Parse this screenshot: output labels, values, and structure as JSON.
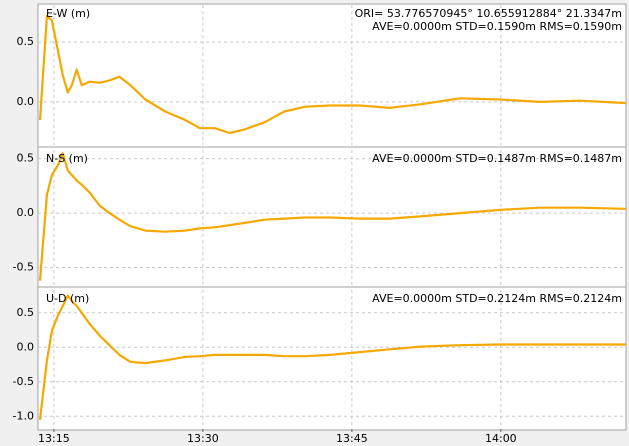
{
  "chart_data": [
    {
      "type": "line",
      "title": "E-W (m)",
      "annotations": [
        "ORI= 53.776570945°   10.655912884° 21.3347m",
        "AVE=0.0000m STD=0.1590m RMS=0.1590m"
      ],
      "x": [
        793.6,
        794.3,
        794.8,
        795.4,
        795.9,
        796.4,
        796.8,
        797.3,
        797.8,
        798.6,
        799.6,
        800.6,
        801.6,
        802.7,
        804.2,
        806.2,
        808.2,
        809.7,
        811.2,
        812.7,
        814.2,
        816.2,
        818.2,
        820.3,
        822.8,
        825.8,
        828.8,
        831.9,
        835.9,
        839.9,
        843.9,
        848.0,
        852.6
      ],
      "series": [
        {
          "name": "E-W",
          "color": "#f5a900",
          "values": [
            -0.15,
            0.72,
            0.68,
            0.43,
            0.22,
            0.08,
            0.14,
            0.27,
            0.14,
            0.17,
            0.16,
            0.18,
            0.21,
            0.14,
            0.02,
            -0.08,
            -0.15,
            -0.22,
            -0.22,
            -0.26,
            -0.23,
            -0.17,
            -0.08,
            -0.04,
            -0.03,
            -0.03,
            -0.05,
            -0.02,
            0.03,
            0.02,
            0.0,
            0.01,
            -0.01
          ]
        }
      ],
      "xlim": [
        793.4,
        852.6
      ],
      "ylim": [
        -0.36,
        0.81
      ],
      "yticks": [
        {
          "value": 0,
          "label": "0.0"
        },
        {
          "value": 0.5,
          "label": "0.5"
        }
      ],
      "grid": true
    },
    {
      "type": "line",
      "title": "N-S (m)",
      "annotations": [
        "AVE=0.0000m STD=0.1487m RMS=0.1487m"
      ],
      "x": [
        793.6,
        794.3,
        794.8,
        795.4,
        795.9,
        796.4,
        796.8,
        797.3,
        797.8,
        798.6,
        799.6,
        800.6,
        801.6,
        802.7,
        804.2,
        806.2,
        808.2,
        809.7,
        811.2,
        812.7,
        814.2,
        816.2,
        818.2,
        820.3,
        822.8,
        825.8,
        828.8,
        831.9,
        835.9,
        839.9,
        843.9,
        848.0,
        852.6
      ],
      "series": [
        {
          "name": "N-S",
          "color": "#f5a900",
          "values": [
            -0.62,
            0.17,
            0.35,
            0.44,
            0.55,
            0.39,
            0.35,
            0.3,
            0.26,
            0.19,
            0.07,
            0.0,
            -0.06,
            -0.12,
            -0.16,
            -0.17,
            -0.16,
            -0.14,
            -0.13,
            -0.11,
            -0.09,
            -0.06,
            -0.05,
            -0.04,
            -0.04,
            -0.05,
            -0.05,
            -0.03,
            0.0,
            0.03,
            0.05,
            0.05,
            0.04
          ]
        }
      ],
      "xlim": [
        793.4,
        852.6
      ],
      "ylim": [
        -0.66,
        0.58
      ],
      "yticks": [
        {
          "value": -0.5,
          "label": "-0.5"
        },
        {
          "value": 0,
          "label": "0.0"
        },
        {
          "value": 0.5,
          "label": "0.5"
        }
      ],
      "grid": true
    },
    {
      "type": "line",
      "title": "U-D (m)",
      "annotations": [
        "AVE=0.0000m STD=0.2124m RMS=0.2124m"
      ],
      "x": [
        793.6,
        794.3,
        794.8,
        795.4,
        795.9,
        796.4,
        796.8,
        797.3,
        797.8,
        798.6,
        799.6,
        800.6,
        801.6,
        802.7,
        804.2,
        806.2,
        808.2,
        809.7,
        811.2,
        812.7,
        814.2,
        816.2,
        818.2,
        820.3,
        822.8,
        825.8,
        828.8,
        831.9,
        835.9,
        839.9,
        843.9,
        848.0,
        852.6
      ],
      "series": [
        {
          "name": "U-D",
          "color": "#f5a900",
          "values": [
            -1.05,
            -0.19,
            0.24,
            0.46,
            0.6,
            0.75,
            0.67,
            0.6,
            0.5,
            0.34,
            0.17,
            0.03,
            -0.11,
            -0.21,
            -0.23,
            -0.19,
            -0.14,
            -0.13,
            -0.11,
            -0.11,
            -0.11,
            -0.11,
            -0.13,
            -0.13,
            -0.11,
            -0.07,
            -0.03,
            0.01,
            0.03,
            0.04,
            0.04,
            0.04,
            0.04
          ]
        }
      ],
      "xlim": [
        793.4,
        852.6
      ],
      "ylim": [
        -1.17,
        0.83
      ],
      "yticks": [
        {
          "value": -1.0,
          "label": "-1.0"
        },
        {
          "value": -0.5,
          "label": "-0.5"
        },
        {
          "value": 0,
          "label": "0.0"
        },
        {
          "value": 0.5,
          "label": "0.5"
        }
      ],
      "xticks": [
        {
          "value": 795,
          "label": "13:15"
        },
        {
          "value": 810,
          "label": "13:30"
        },
        {
          "value": 825,
          "label": "13:45"
        },
        {
          "value": 840,
          "label": "14:00"
        }
      ],
      "grid": true
    }
  ]
}
